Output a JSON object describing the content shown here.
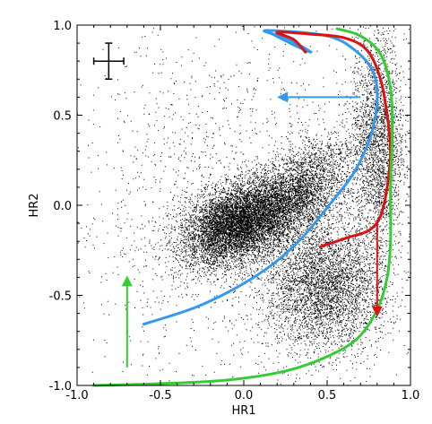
{
  "chart_data": {
    "type": "scatter",
    "title": "",
    "xlabel": "HR1",
    "ylabel": "HR2",
    "xlim": [
      -1.0,
      1.0
    ],
    "ylim": [
      -1.0,
      1.0
    ],
    "grid": false,
    "xticks": [
      -1.0,
      -0.5,
      0.0,
      0.5,
      1.0
    ],
    "yticks": [
      -1.0,
      -0.5,
      0.0,
      0.5,
      1.0
    ],
    "xtick_labels": [
      "-1.0",
      "-0.5",
      "0.0",
      "0.5",
      "1.0"
    ],
    "ytick_labels": [
      "-1.0",
      "-0.5",
      "0.0",
      "0.5",
      "1.0"
    ],
    "point_clusters": [
      {
        "center": [
          -0.05,
          -0.1
        ],
        "spread": [
          0.17,
          0.1
        ],
        "count": 9000,
        "rotation": 25
      },
      {
        "center": [
          0.3,
          0.05
        ],
        "spread": [
          0.2,
          0.1
        ],
        "count": 3500,
        "rotation": 40
      },
      {
        "center": [
          0.48,
          -0.45
        ],
        "spread": [
          0.18,
          0.18
        ],
        "count": 4000,
        "rotation": -20
      },
      {
        "center": [
          0.8,
          0.35
        ],
        "spread": [
          0.08,
          0.3
        ],
        "count": 2500,
        "rotation": 0
      },
      {
        "center": [
          0.0,
          0.0
        ],
        "spread": [
          0.55,
          0.5
        ],
        "count": 2000,
        "rotation": 0
      }
    ],
    "error_bar": {
      "x": -0.81,
      "y": 0.8,
      "xerr": 0.09,
      "yerr": 0.1
    },
    "tracks": [
      {
        "color": "#3399ee",
        "points": [
          [
            0.13,
            0.97
          ],
          [
            0.3,
            0.89
          ],
          [
            0.4,
            0.85
          ],
          [
            0.35,
            0.88
          ],
          [
            0.25,
            0.93
          ],
          [
            0.13,
            0.97
          ],
          [
            0.5,
            0.94
          ],
          [
            0.68,
            0.85
          ],
          [
            0.78,
            0.73
          ],
          [
            0.8,
            0.58
          ],
          [
            0.76,
            0.38
          ],
          [
            0.66,
            0.18
          ],
          [
            0.52,
            0.01
          ],
          [
            0.35,
            -0.18
          ],
          [
            0.17,
            -0.33
          ],
          [
            -0.05,
            -0.46
          ],
          [
            -0.3,
            -0.57
          ],
          [
            -0.6,
            -0.66
          ]
        ]
      },
      {
        "color": "#dd1111",
        "points": [
          [
            0.37,
            0.85
          ],
          [
            0.3,
            0.92
          ],
          [
            0.2,
            0.96
          ],
          [
            0.4,
            0.95
          ],
          [
            0.6,
            0.93
          ],
          [
            0.74,
            0.86
          ],
          [
            0.82,
            0.7
          ],
          [
            0.86,
            0.5
          ],
          [
            0.88,
            0.3
          ],
          [
            0.86,
            0.1
          ],
          [
            0.82,
            -0.06
          ],
          [
            0.75,
            -0.14
          ],
          [
            0.62,
            -0.18
          ],
          [
            0.46,
            -0.23
          ]
        ]
      },
      {
        "color": "#33cc33",
        "points": [
          [
            0.56,
            0.98
          ],
          [
            0.7,
            0.94
          ],
          [
            0.82,
            0.84
          ],
          [
            0.88,
            0.65
          ],
          [
            0.89,
            0.4
          ],
          [
            0.88,
            0.1
          ],
          [
            0.88,
            -0.2
          ],
          [
            0.86,
            -0.4
          ],
          [
            0.8,
            -0.58
          ],
          [
            0.68,
            -0.74
          ],
          [
            0.5,
            -0.84
          ],
          [
            0.25,
            -0.92
          ],
          [
            -0.1,
            -0.97
          ],
          [
            -0.5,
            -0.99
          ],
          [
            -0.9,
            -1.0
          ]
        ]
      }
    ],
    "arrows": [
      {
        "color": "#3399ee",
        "from": [
          0.7,
          0.6
        ],
        "to": [
          0.2,
          0.6
        ]
      },
      {
        "color": "#dd1111",
        "from": [
          0.8,
          -0.08
        ],
        "to": [
          0.8,
          -0.62
        ]
      },
      {
        "color": "#33cc33",
        "from": [
          -0.7,
          -0.9
        ],
        "to": [
          -0.7,
          -0.39
        ]
      }
    ]
  }
}
